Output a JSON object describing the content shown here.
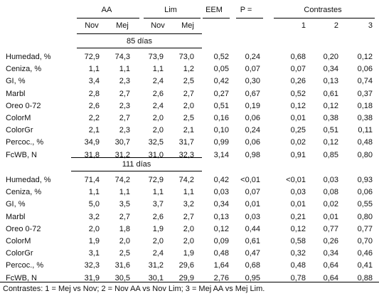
{
  "header": {
    "group_aa": "AA",
    "group_lim": "Lim",
    "eem": "EEM",
    "p": "P =",
    "contrasts": "Contrastes",
    "sub_nov_1": "Nov",
    "sub_mej_1": "Mej",
    "sub_nov_2": "Nov",
    "sub_mej_2": "Mej",
    "c1": "1",
    "c2": "2",
    "c3": "3"
  },
  "sections": [
    {
      "title": "85 días",
      "rows": [
        [
          "Humedad, %",
          "72,9",
          "74,3",
          "73,9",
          "73,0",
          "0,52",
          "0,24",
          "0,68",
          "0,20",
          "0,12"
        ],
        [
          "Ceniza, %",
          "1,1",
          "1,1",
          "1,1",
          "1,2",
          "0,05",
          "0,07",
          "0,07",
          "0,34",
          "0,06"
        ],
        [
          "GI, %",
          "3,4",
          "2,3",
          "2,4",
          "2,5",
          "0,42",
          "0,30",
          "0,26",
          "0,13",
          "0,74"
        ],
        [
          "Marbl",
          "2,8",
          "2,7",
          "2,6",
          "2,7",
          "0,27",
          "0,67",
          "0,52",
          "0,61",
          "0,37"
        ],
        [
          "Oreo 0-72",
          "2,6",
          "2,3",
          "2,4",
          "2,0",
          "0,51",
          "0,19",
          "0,12",
          "0,12",
          "0,18"
        ],
        [
          "ColorM",
          "2,2",
          "2,7",
          "2,0",
          "2,5",
          "0,16",
          "0,06",
          "0,01",
          "0,38",
          "0,38"
        ],
        [
          "ColorGr",
          "2,1",
          "2,3",
          "2,0",
          "2,1",
          "0,10",
          "0,24",
          "0,25",
          "0,51",
          "0,11"
        ],
        [
          "Percoc., %",
          "34,9",
          "30,7",
          "32,5",
          "31,7",
          "0,99",
          "0,06",
          "0,02",
          "0,12",
          "0,48"
        ],
        [
          "FcWB, N",
          "31,8",
          "31,2",
          "31,0",
          "32,3",
          "3,14",
          "0,98",
          "0,91",
          "0,85",
          "0,80"
        ]
      ]
    },
    {
      "title": "111 días",
      "rows": [
        [
          "Humedad, %",
          "71,4",
          "74,2",
          "72,9",
          "74,2",
          "0,42",
          "<0,01",
          "<0,01",
          "0,03",
          "0,93"
        ],
        [
          "Ceniza, %",
          "1,1",
          "1,1",
          "1,1",
          "1,1",
          "0,03",
          "0,07",
          "0,03",
          "0,08",
          "0,06"
        ],
        [
          "GI, %",
          "5,0",
          "3,5",
          "3,7",
          "3,2",
          "0,34",
          "0,01",
          "0,01",
          "0,02",
          "0,55"
        ],
        [
          "Marbl",
          "3,2",
          "2,7",
          "2,6",
          "2,7",
          "0,13",
          "0,03",
          "0,21",
          "0,01",
          "0,80"
        ],
        [
          "Oreo 0-72",
          "2,0",
          "1,8",
          "1,9",
          "2,0",
          "0,12",
          "0,44",
          "0,12",
          "0,77",
          "0,77"
        ],
        [
          "ColorM",
          "1,9",
          "2,0",
          "2,0",
          "2,0",
          "0,09",
          "0,61",
          "0,58",
          "0,26",
          "0,70"
        ],
        [
          "ColorGr",
          "3,1",
          "2,5",
          "2,4",
          "1,9",
          "0,48",
          "0,47",
          "0,32",
          "0,34",
          "0,46"
        ],
        [
          "Percoc., %",
          "32,3",
          "31,6",
          "31,2",
          "29,6",
          "1,64",
          "0,68",
          "0,48",
          "0,64",
          "0,41"
        ],
        [
          "FcWB, N",
          "31,9",
          "30,5",
          "30,1",
          "29,9",
          "2,76",
          "0,95",
          "0,78",
          "0,64",
          "0,88"
        ]
      ]
    }
  ],
  "footnote": "Contrastes: 1 = Mej vs Nov; 2 = Nov AA vs Nov Lim; 3 = Mej AA vs Mej Lim."
}
